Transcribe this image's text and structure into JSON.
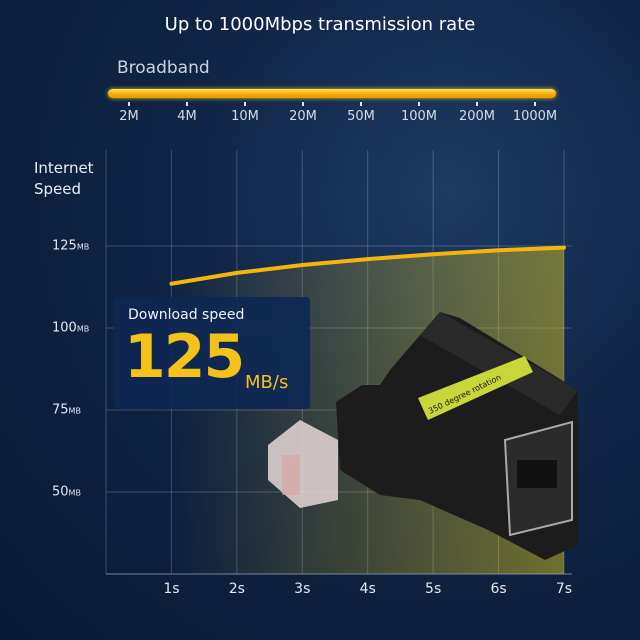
{
  "title": "Up to 1000Mbps transmission rate",
  "broadband": {
    "label": "Broadband",
    "ticks": [
      "2M",
      "4M",
      "10M",
      "20M",
      "50M",
      "100M",
      "200M",
      "1000M"
    ]
  },
  "highlight": {
    "label": "Download speed",
    "value": "125",
    "unit": "MB/s"
  },
  "product_label": "350 degree rotation",
  "colors": {
    "accent": "#f5c21a",
    "background": "#0f2445",
    "product_band": "#c8d63a"
  },
  "chart_data": {
    "type": "line",
    "ylabel": "Internet Speed",
    "xlabel": "",
    "x_ticks": [
      "1s",
      "2s",
      "3s",
      "4s",
      "5s",
      "6s",
      "7s"
    ],
    "y_ticks": [
      {
        "value": 125,
        "label": "125",
        "unit": "MB"
      },
      {
        "value": 100,
        "label": "100",
        "unit": "MB"
      },
      {
        "value": 75,
        "label": "75",
        "unit": "MB"
      },
      {
        "value": 50,
        "label": "50",
        "unit": "MB"
      }
    ],
    "xlim": [
      0,
      7
    ],
    "ylim": [
      25,
      125
    ],
    "grid": true,
    "series": [
      {
        "x": [
          1,
          2,
          3,
          4,
          5,
          6,
          7
        ],
        "y": [
          113.5,
          116.8,
          119.2,
          121.0,
          122.5,
          123.7,
          124.5
        ]
      }
    ]
  }
}
